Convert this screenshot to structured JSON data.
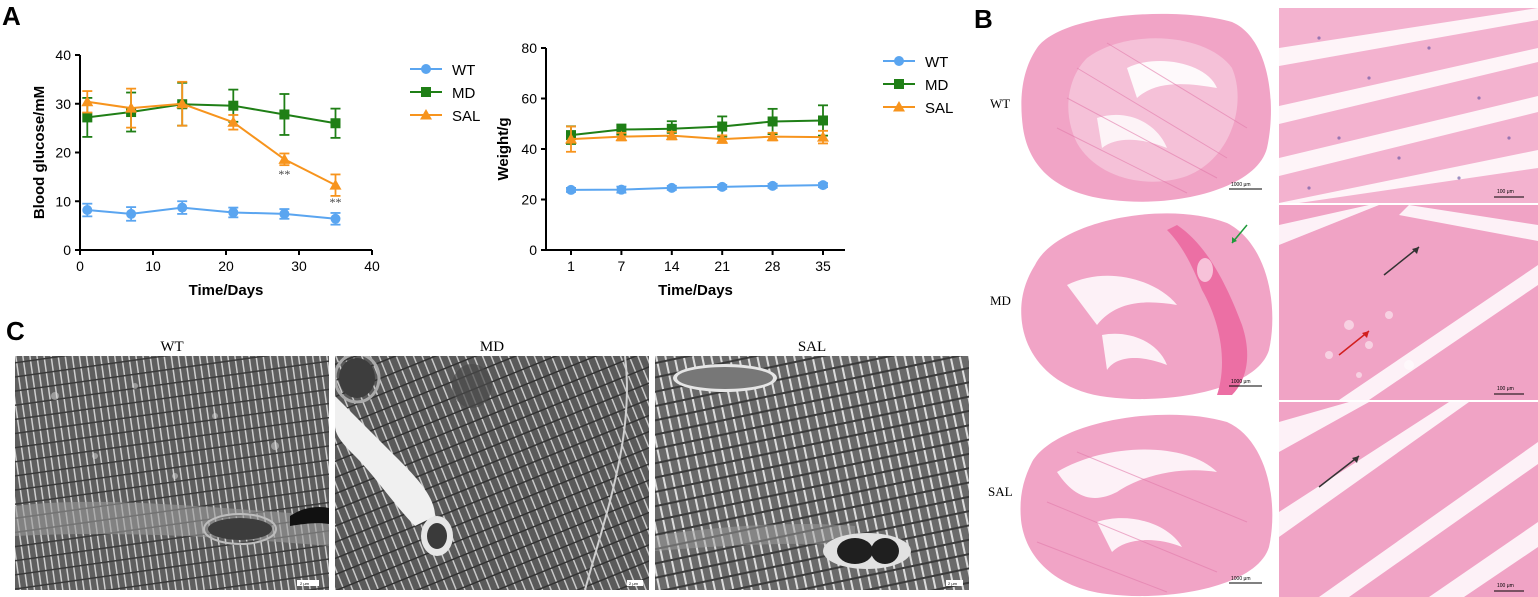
{
  "panels": {
    "A": "A",
    "B": "B",
    "C": "C"
  },
  "colors": {
    "WT": "#5aa5f0",
    "MD": "#1f7f16",
    "SAL": "#f7941d"
  },
  "chart_data": [
    {
      "type": "line",
      "x": [
        1,
        7,
        14,
        21,
        28,
        35
      ],
      "series": [
        {
          "name": "WT",
          "marker": "circle",
          "values": [
            8.2,
            7.4,
            8.7,
            7.7,
            7.4,
            6.4
          ],
          "err": [
            1.3,
            1.4,
            1.3,
            1.0,
            1.0,
            1.2
          ]
        },
        {
          "name": "MD",
          "marker": "square",
          "values": [
            27.2,
            28.3,
            29.9,
            29.6,
            27.8,
            26.0
          ],
          "err": [
            4.0,
            4.0,
            4.4,
            3.3,
            4.2,
            3.0
          ]
        },
        {
          "name": "SAL",
          "marker": "triangle",
          "values": [
            30.4,
            29.1,
            30.0,
            26.2,
            18.6,
            13.3
          ],
          "err": [
            2.2,
            4.0,
            4.5,
            1.5,
            1.2,
            2.2
          ]
        }
      ],
      "annotations": [
        {
          "x": 28,
          "y": 15.8,
          "text": "**"
        },
        {
          "x": 35,
          "y": 10.1,
          "text": "**"
        }
      ],
      "xlabel": "Time/Days",
      "ylabel": "Blood glucose/mM",
      "xlim": [
        0,
        40
      ],
      "ylim": [
        0,
        40
      ],
      "xticks": [
        0,
        10,
        20,
        30,
        40
      ],
      "yticks": [
        0,
        10,
        20,
        30,
        40
      ],
      "legend": [
        "WT",
        "MD",
        "SAL"
      ],
      "legend_position": "right",
      "grid": false
    },
    {
      "type": "line",
      "categories": [
        "1",
        "7",
        "14",
        "21",
        "28",
        "35"
      ],
      "series": [
        {
          "name": "WT",
          "marker": "circle",
          "values": [
            23.8,
            23.9,
            24.6,
            25.0,
            25.4,
            25.7
          ],
          "err": [
            0.8,
            1.2,
            0.8,
            0.8,
            0.8,
            0.8
          ]
        },
        {
          "name": "MD",
          "marker": "square",
          "values": [
            45.5,
            47.7,
            48.0,
            48.9,
            50.9,
            51.3
          ],
          "err": [
            3.5,
            2.0,
            3.0,
            4.0,
            5.0,
            6.0
          ]
        },
        {
          "name": "SAL",
          "marker": "triangle",
          "values": [
            43.9,
            44.9,
            45.3,
            43.9,
            44.9,
            44.7
          ],
          "err": [
            5.0,
            1.5,
            1.5,
            1.5,
            1.5,
            2.5
          ]
        }
      ],
      "xlabel": "Time/Days",
      "ylabel": "Weight/g",
      "ylim": [
        0,
        80
      ],
      "yticks": [
        0,
        20,
        40,
        60,
        80
      ],
      "legend": [
        "WT",
        "MD",
        "SAL"
      ],
      "legend_position": "right",
      "grid": false
    }
  ],
  "histology": {
    "rows": [
      "WT",
      "MD",
      "SAL"
    ],
    "scale_low": "1000 μm",
    "scale_high": "100 μm"
  },
  "em": {
    "titles": [
      "WT",
      "MD",
      "SAL"
    ],
    "scale": "2 μm"
  }
}
